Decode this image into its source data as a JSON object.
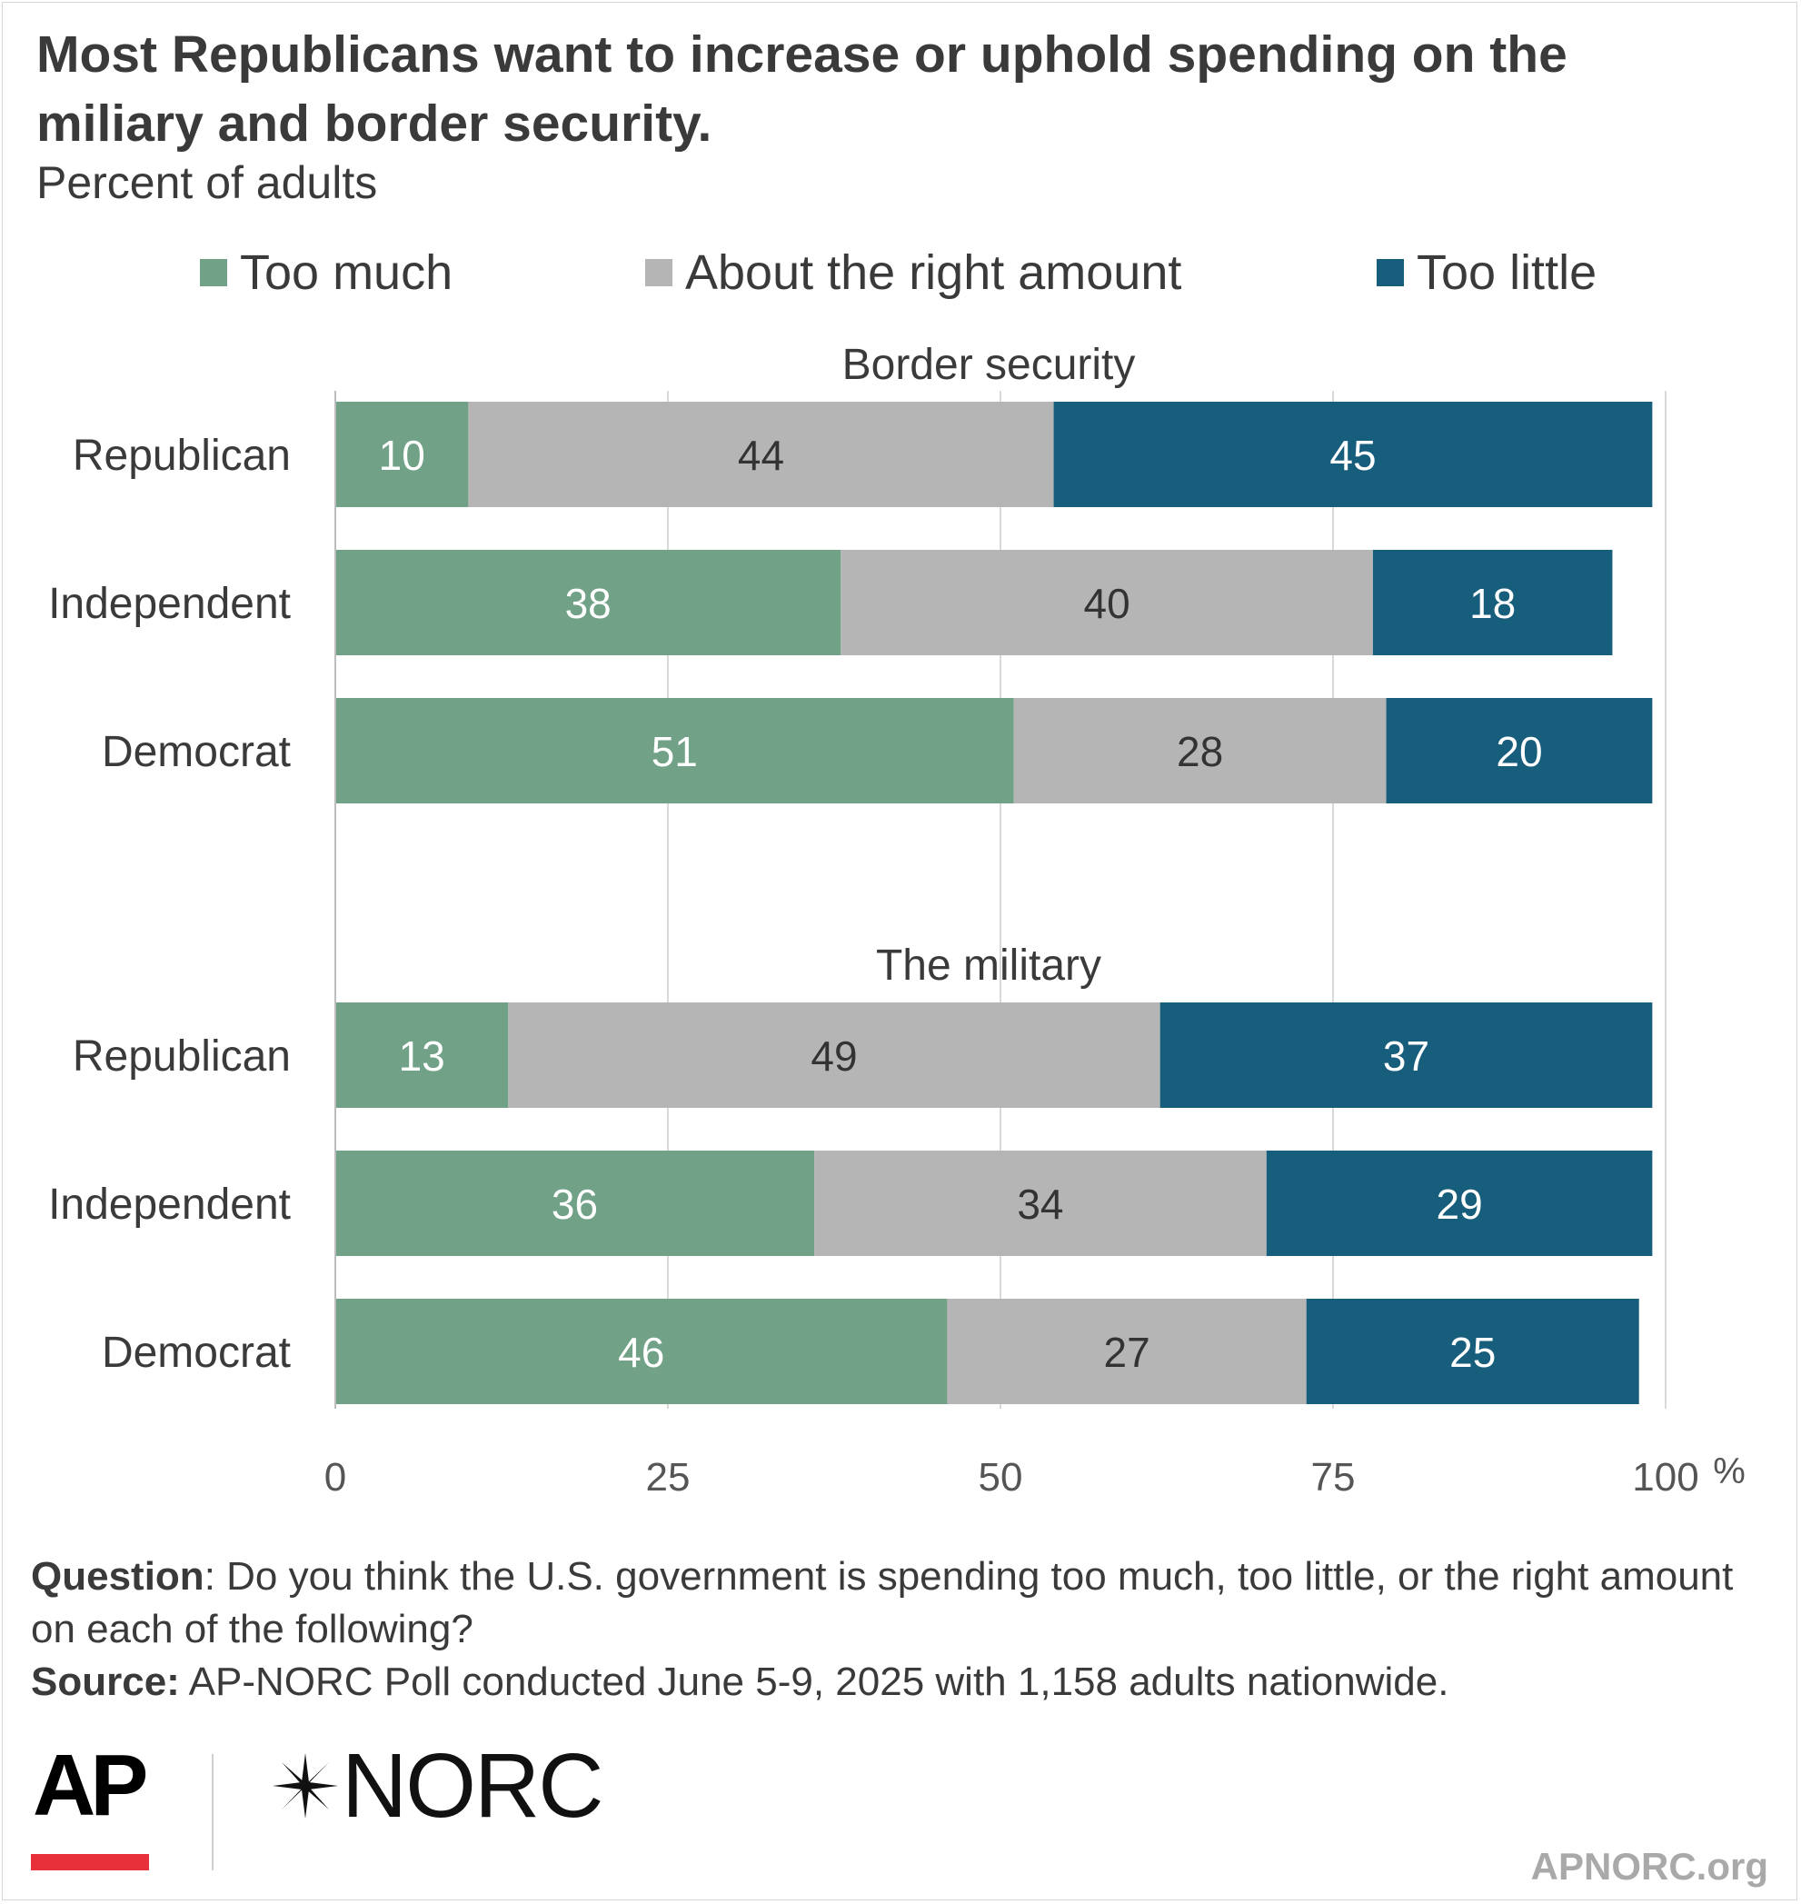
{
  "header": {
    "title": "Most Republicans want to increase or uphold spending on the miliary and border security.",
    "subtitle": "Percent of adults"
  },
  "legend": [
    {
      "label": "Too much",
      "color": "#71a287"
    },
    {
      "label": "About the right amount",
      "color": "#b5b5b5"
    },
    {
      "label": "Too little",
      "color": "#175d7c"
    }
  ],
  "chart_data": {
    "type": "bar",
    "orientation": "horizontal",
    "stacked": true,
    "title": "Most Republicans want to increase or uphold spending on the miliary and border security.",
    "subtitle": "Percent of adults",
    "xlim": [
      0,
      100
    ],
    "x_ticks": [
      "0",
      "25",
      "50",
      "75",
      "100"
    ],
    "x_unit": "%",
    "grid": true,
    "legend_position": "top",
    "series_names": [
      "Too much",
      "About the right amount",
      "Too little"
    ],
    "series_colors": [
      "#71a287",
      "#b5b5b5",
      "#175d7c"
    ],
    "label_colors": [
      "#ffffff",
      "#333333",
      "#ffffff"
    ],
    "panels": [
      {
        "label": "Border security",
        "categories": [
          "Republican",
          "Independent",
          "Democrat"
        ],
        "values": [
          [
            10,
            44,
            45
          ],
          [
            38,
            40,
            18
          ],
          [
            51,
            28,
            20
          ]
        ]
      },
      {
        "label": "The military",
        "categories": [
          "Republican",
          "Independent",
          "Democrat"
        ],
        "values": [
          [
            13,
            49,
            37
          ],
          [
            36,
            34,
            29
          ],
          [
            46,
            27,
            25
          ]
        ]
      }
    ]
  },
  "footer": {
    "question_label": "Question",
    "question_text": ": Do you think the U.S. government is spending too much, too little, or the right amount on each of the following?",
    "source_label": "Source:",
    "source_text": " AP-NORC Poll conducted June 5-9, 2025 with 1,158 adults nationwide.",
    "logo_ap": "AP",
    "logo_norc": "NORC",
    "url": "APNORC.org"
  }
}
